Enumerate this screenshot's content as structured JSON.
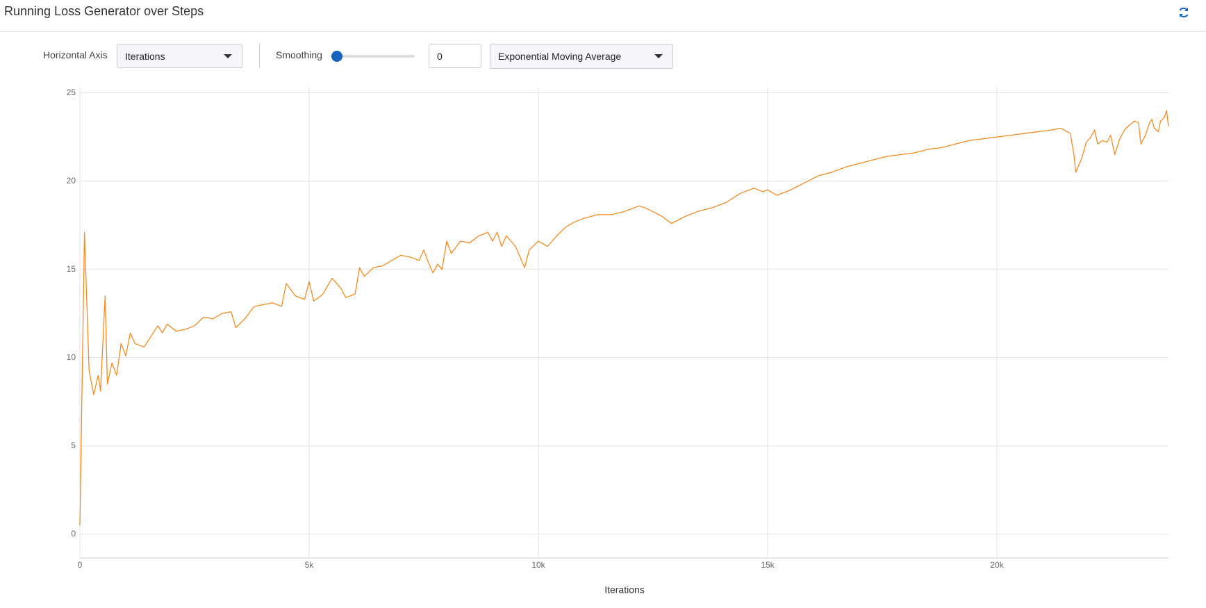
{
  "header": {
    "title": "Running Loss Generator over Steps"
  },
  "controls": {
    "horizontal_axis_label": "Horizontal Axis",
    "horizontal_axis_value": "Iterations",
    "smoothing_label": "Smoothing",
    "smoothing_value": "0",
    "smoothing_method": "Exponential Moving Average"
  },
  "chart_data": {
    "type": "line",
    "xlabel": "Iterations",
    "color": "#f58a1f",
    "x": [
      0,
      100,
      200,
      300,
      400,
      450,
      550,
      600,
      700,
      800,
      900,
      1000,
      1100,
      1200,
      1400,
      1500,
      1700,
      1800,
      1900,
      2100,
      2300,
      2500,
      2700,
      2900,
      3100,
      3300,
      3400,
      3600,
      3800,
      4000,
      4200,
      4400,
      4500,
      4700,
      4900,
      5000,
      5100,
      5300,
      5500,
      5700,
      5800,
      6000,
      6100,
      6200,
      6400,
      6600,
      6800,
      7000,
      7200,
      7400,
      7500,
      7600,
      7700,
      7800,
      7900,
      8000,
      8100,
      8300,
      8500,
      8700,
      8900,
      9000,
      9100,
      9200,
      9300,
      9500,
      9700,
      9800,
      10000,
      10200,
      10400,
      10600,
      10800,
      11000,
      11300,
      11600,
      11900,
      12200,
      12400,
      12700,
      12900,
      13200,
      13500,
      13800,
      14100,
      14400,
      14700,
      14900,
      15000,
      15200,
      15500,
      15800,
      16100,
      16400,
      16700,
      17000,
      17300,
      17600,
      17900,
      18200,
      18500,
      18800,
      19100,
      19400,
      19700,
      20000,
      20300,
      20600,
      20900,
      21200,
      21400,
      21600,
      21680,
      21720,
      21850,
      21950,
      22050,
      22130,
      22200,
      22300,
      22400,
      22480,
      22570,
      22680,
      22780,
      22900,
      23000,
      23090,
      23140,
      23240,
      23330,
      23380,
      23430,
      23520,
      23570,
      23650,
      23700,
      23742
    ],
    "values": [
      0.5,
      17.1,
      9.3,
      7.9,
      9.0,
      8.1,
      13.5,
      8.5,
      9.7,
      9.0,
      10.8,
      10.1,
      11.4,
      10.8,
      10.6,
      11.0,
      11.8,
      11.4,
      11.9,
      11.5,
      11.6,
      11.8,
      12.3,
      12.2,
      12.5,
      12.6,
      11.7,
      12.2,
      12.9,
      13.0,
      13.1,
      12.9,
      14.2,
      13.5,
      13.3,
      14.3,
      13.2,
      13.6,
      14.5,
      13.9,
      13.4,
      13.6,
      15.1,
      14.6,
      15.1,
      15.2,
      15.5,
      15.8,
      15.7,
      15.5,
      16.1,
      15.4,
      14.8,
      15.3,
      15.0,
      16.6,
      15.9,
      16.6,
      16.5,
      16.9,
      17.1,
      16.6,
      17.1,
      16.3,
      16.9,
      16.3,
      15.1,
      16.1,
      16.6,
      16.3,
      16.9,
      17.4,
      17.7,
      17.9,
      18.1,
      18.1,
      18.3,
      18.6,
      18.4,
      18.0,
      17.6,
      18.0,
      18.3,
      18.5,
      18.8,
      19.3,
      19.6,
      19.4,
      19.5,
      19.2,
      19.5,
      19.9,
      20.3,
      20.5,
      20.8,
      21.0,
      21.2,
      21.4,
      21.5,
      21.6,
      21.8,
      21.9,
      22.1,
      22.3,
      22.4,
      22.5,
      22.6,
      22.7,
      22.8,
      22.9,
      23.0,
      22.7,
      21.5,
      20.5,
      21.3,
      22.2,
      22.5,
      22.9,
      22.1,
      22.3,
      22.2,
      22.6,
      21.5,
      22.4,
      22.9,
      23.2,
      23.4,
      23.3,
      22.1,
      22.6,
      23.3,
      23.5,
      23.0,
      22.8,
      23.4,
      23.6,
      24.0,
      23.1
    ],
    "xlim": [
      0,
      23742
    ],
    "ylim": [
      -1.35,
      25.3
    ],
    "xticks": [
      0,
      {
        "value": 5000,
        "label": "5k"
      },
      {
        "value": 10000,
        "label": "10k"
      },
      {
        "value": 15000,
        "label": "15k"
      },
      {
        "value": 20000,
        "label": "20k"
      }
    ],
    "yticks": [
      0,
      5,
      10,
      15,
      20,
      25
    ],
    "grid": true
  }
}
